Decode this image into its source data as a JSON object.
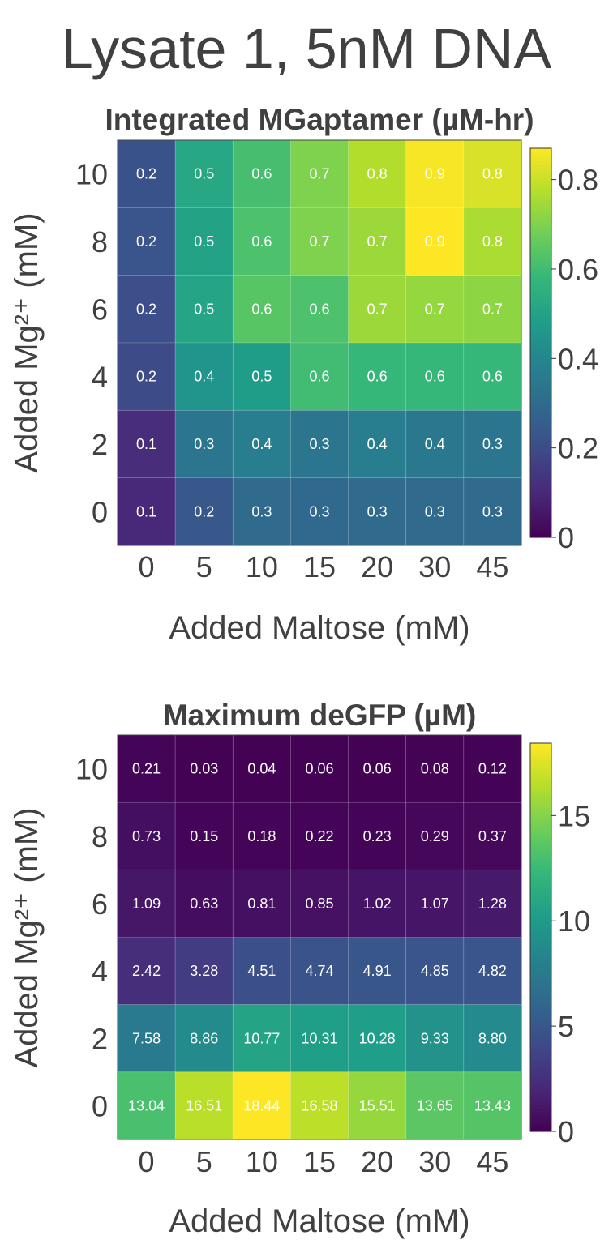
{
  "figure": {
    "title": "Lysate 1, 5nM DNA"
  },
  "colors": {
    "text": "#404040",
    "colormap": [
      "#440154",
      "#482878",
      "#3e4a89",
      "#31688e",
      "#26828e",
      "#1f9e89",
      "#35b779",
      "#6ece58",
      "#b5de2b",
      "#fde725"
    ]
  },
  "chart_data": [
    {
      "type": "heatmap",
      "title": "Integrated MGaptamer (µM-hr)",
      "xlabel": "Added Maltose (mM)",
      "ylabel": "Added Mg²⁺ (mM)",
      "x": [
        "0",
        "5",
        "10",
        "15",
        "20",
        "30",
        "45"
      ],
      "y": [
        "10",
        "8",
        "6",
        "4",
        "2",
        "0"
      ],
      "values": [
        [
          0.2,
          0.5,
          0.6,
          0.7,
          0.8,
          0.9,
          0.8
        ],
        [
          0.2,
          0.5,
          0.6,
          0.7,
          0.7,
          0.9,
          0.8
        ],
        [
          0.2,
          0.5,
          0.6,
          0.6,
          0.7,
          0.7,
          0.7
        ],
        [
          0.2,
          0.4,
          0.5,
          0.6,
          0.6,
          0.6,
          0.6
        ],
        [
          0.1,
          0.3,
          0.4,
          0.3,
          0.4,
          0.4,
          0.3
        ],
        [
          0.1,
          0.2,
          0.3,
          0.3,
          0.3,
          0.3,
          0.3
        ]
      ],
      "color_values": [
        [
          0.22,
          0.52,
          0.61,
          0.7,
          0.77,
          0.86,
          0.82
        ],
        [
          0.23,
          0.5,
          0.62,
          0.7,
          0.74,
          0.87,
          0.76
        ],
        [
          0.21,
          0.51,
          0.64,
          0.62,
          0.74,
          0.73,
          0.72
        ],
        [
          0.2,
          0.45,
          0.48,
          0.6,
          0.58,
          0.58,
          0.58
        ],
        [
          0.11,
          0.34,
          0.37,
          0.34,
          0.37,
          0.35,
          0.34
        ],
        [
          0.1,
          0.24,
          0.3,
          0.29,
          0.3,
          0.3,
          0.3
        ]
      ],
      "colorbar": {
        "min": 0,
        "max": 0.87,
        "ticks": [
          0,
          0.2,
          0.4,
          0.6,
          0.8
        ],
        "tick_labels": [
          "0",
          "0.2",
          "0.4",
          "0.6",
          "0.8"
        ]
      }
    },
    {
      "type": "heatmap",
      "title": "Maximum deGFP (µM)",
      "xlabel": "Added Maltose (mM)",
      "ylabel": "Added Mg²⁺ (mM)",
      "x": [
        "0",
        "5",
        "10",
        "15",
        "20",
        "30",
        "45"
      ],
      "y": [
        "10",
        "8",
        "6",
        "4",
        "2",
        "0"
      ],
      "values": [
        [
          0.21,
          0.03,
          0.04,
          0.06,
          0.06,
          0.08,
          0.12
        ],
        [
          0.73,
          0.15,
          0.18,
          0.22,
          0.23,
          0.29,
          0.37
        ],
        [
          1.09,
          0.63,
          0.81,
          0.85,
          1.02,
          1.07,
          1.28
        ],
        [
          2.42,
          3.28,
          4.51,
          4.74,
          4.91,
          4.85,
          4.82
        ],
        [
          7.58,
          8.86,
          10.77,
          10.31,
          10.28,
          9.33,
          8.8
        ],
        [
          13.04,
          16.51,
          18.44,
          16.58,
          15.51,
          13.65,
          13.43
        ]
      ],
      "value_labels": [
        [
          "0.21",
          "0.03",
          "0.04",
          "0.06",
          "0.06",
          "0.08",
          "0.12"
        ],
        [
          "0.73",
          "0.15",
          "0.18",
          "0.22",
          "0.23",
          "0.29",
          "0.37"
        ],
        [
          "1.09",
          "0.63",
          "0.81",
          "0.85",
          "1.02",
          "1.07",
          "1.28"
        ],
        [
          "2.42",
          "3.28",
          "4.51",
          "4.74",
          "4.91",
          "4.85",
          "4.82"
        ],
        [
          "7.58",
          "8.86",
          "10.77",
          "10.31",
          "10.28",
          "9.33",
          "8.80"
        ],
        [
          "13.04",
          "16.51",
          "18.44",
          "16.58",
          "15.51",
          "13.65",
          "13.43"
        ]
      ],
      "colorbar": {
        "min": 0,
        "max": 18.44,
        "ticks": [
          0,
          5,
          10,
          15
        ],
        "tick_labels": [
          "0",
          "5",
          "10",
          "15"
        ]
      }
    }
  ]
}
